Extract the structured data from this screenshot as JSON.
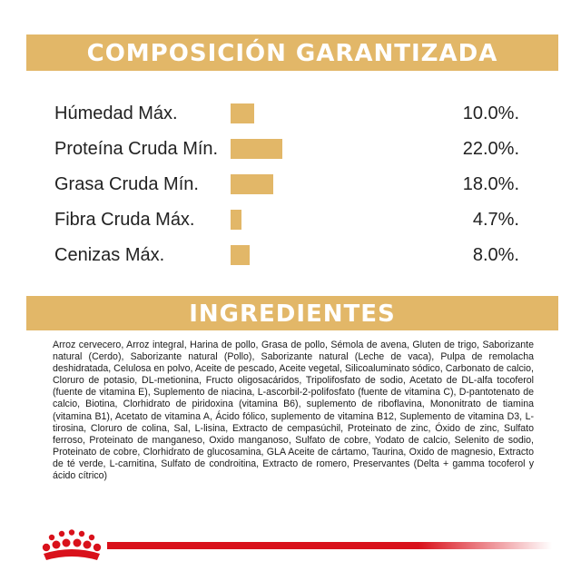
{
  "composition": {
    "title": "COMPOSICIÓN GARANTIZADA",
    "rows": [
      {
        "label": "Húmedad Máx.",
        "value": "10.0%.",
        "percent": 10.0
      },
      {
        "label": "Proteína Cruda Mín.",
        "value": "22.0%.",
        "percent": 22.0
      },
      {
        "label": "Grasa Cruda Mín.",
        "value": "18.0%.",
        "percent": 18.0
      },
      {
        "label": "Fibra Cruda Máx.",
        "value": "4.7%.",
        "percent": 4.7
      },
      {
        "label": "Cenizas Máx.",
        "value": "8.0%.",
        "percent": 8.0
      }
    ]
  },
  "ingredients": {
    "title": "INGREDIENTES",
    "text": "Arroz cervecero, Arroz integral, Harina de pollo, Grasa de pollo, Sémola de avena, Gluten de trigo, Saborizante natural (Cerdo), Saborizante natural (Pollo), Saborizante natural (Leche de vaca), Pulpa de remolacha deshidratada, Celulosa en polvo, Aceite de pescado, Aceite vegetal, Silicoaluminato sódico, Carbonato de calcio, Cloruro de potasio, DL-metionina, Fructo oligosacáridos, Tripolifosfato de sodio, Acetato de DL-alfa tocoferol (fuente de vitamina E), Suplemento de niacina, L-ascorbil-2-polifosfato (fuente de vitamina C), D-pantotenato de calcio, Biotina, Clorhidrato de piridoxina (vitamina B6), suplemento de riboflavina, Mononitrato de tiamina (vitamina B1), Acetato de vitamina A, Ácido fólico, suplemento de vitamina B12, Suplemento de vitamina D3, L-tirosina, Cloruro de colina, Sal, L-lisina, Extracto de cempasúchil, Proteinato de zinc, Óxido de zinc, Sulfato ferroso, Proteinato de manganeso, Oxido manganoso, Sulfato de cobre, Yodato de calcio, Selenito de sodio, Proteinato de cobre, Clorhidrato de glucosamina, GLA Aceite de cártamo, Taurina, Oxido de magnesio, Extracto de té verde, L-carnitina, Sulfato de condroitina, Extracto de romero, Preservantes (Delta + gamma tocoferol y ácido cítrico)"
  },
  "colors": {
    "banner": "#e2b768",
    "bar": "#e2b768",
    "brand_red": "#d9111b"
  },
  "icons": {
    "logo": "crown-logo-icon"
  }
}
